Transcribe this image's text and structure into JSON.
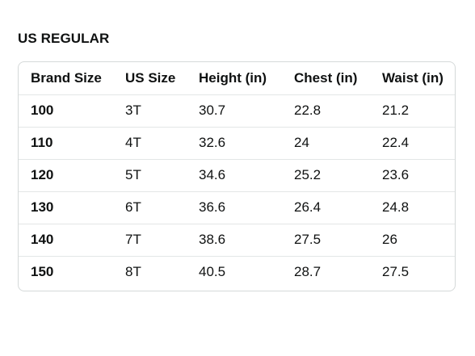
{
  "section": {
    "title": "US REGULAR"
  },
  "table": {
    "headers": [
      "Brand Size",
      "US Size",
      "Height (in)",
      "Chest (in)",
      "Waist (in)"
    ],
    "rows": [
      [
        "100",
        "3T",
        "30.7",
        "22.8",
        "21.2"
      ],
      [
        "110",
        "4T",
        "32.6",
        "24",
        "22.4"
      ],
      [
        "120",
        "5T",
        "34.6",
        "25.2",
        "23.6"
      ],
      [
        "130",
        "6T",
        "36.6",
        "26.4",
        "24.8"
      ],
      [
        "140",
        "7T",
        "38.6",
        "27.5",
        "26"
      ],
      [
        "150",
        "8T",
        "40.5",
        "28.7",
        "27.5"
      ]
    ]
  },
  "colors": {
    "text": "#0f1111",
    "border": "#d5d9d9",
    "row_divider": "#e3e6e6",
    "background": "#ffffff"
  }
}
